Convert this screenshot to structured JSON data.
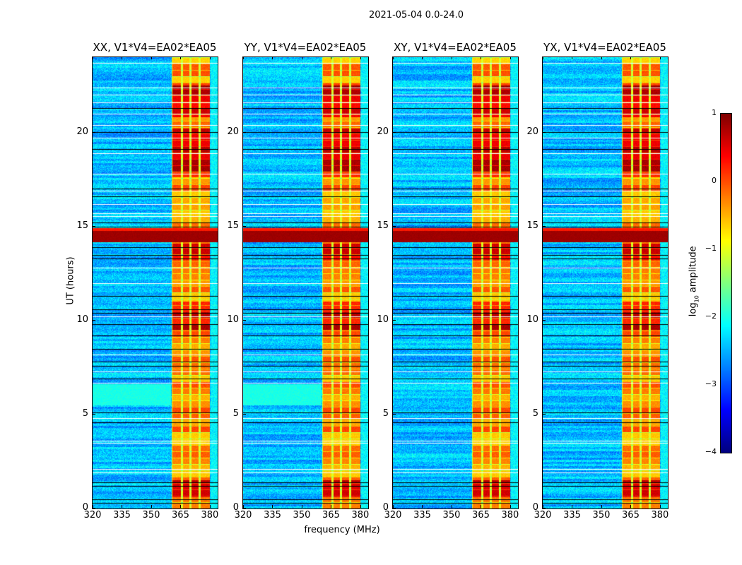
{
  "figure": {
    "suptitle": "2021-05-04 0.0-24.0",
    "xlabel": "frequency (MHz)",
    "ylabel": "UT (hours)"
  },
  "chart_data": {
    "type": "heatmap",
    "title": "2021-05-04 0.0-24.0",
    "xlabel": "frequency (MHz)",
    "ylabel": "UT (hours)",
    "xlim": [
      320,
      384
    ],
    "ylim": [
      0,
      24
    ],
    "xticks": [
      "320",
      "335",
      "350",
      "365",
      "380"
    ],
    "xtick_values": [
      320,
      335,
      350,
      365,
      380
    ],
    "yticks": [
      "0",
      "5",
      "10",
      "15",
      "20"
    ],
    "ytick_values": [
      0,
      5,
      10,
      15,
      20
    ],
    "panels": [
      {
        "title": "XX, V1*V4=EA02*EA05",
        "pol": "XX",
        "cyan_patch": true
      },
      {
        "title": "YY, V1*V4=EA02*EA05",
        "pol": "YY",
        "cyan_patch": true
      },
      {
        "title": "XY, V1*V4=EA02*EA05",
        "pol": "XY",
        "cyan_patch": false
      },
      {
        "title": "YX, V1*V4=EA02*EA05",
        "pol": "YX",
        "cyan_patch": false
      }
    ],
    "colorbar": {
      "label": "log10 amplitude",
      "label_main": "log",
      "label_sub": "10",
      "label_rest": " amplitude",
      "range": [
        -4,
        1
      ],
      "ticks": [
        "1",
        "0",
        "−1",
        "−2",
        "−3",
        "−4"
      ],
      "tick_values": [
        1,
        0,
        -1,
        -2,
        -3,
        -4
      ],
      "colormap": "jet"
    },
    "features": {
      "background_level": -2.8,
      "rfi_band_mhz": [
        360.5,
        380
      ],
      "rfi_band_level": -0.4,
      "rfi_subchannel_gaps_mhz": [
        365.8,
        370.1,
        374.8
      ],
      "rfi_strong_hours": [
        [
          17.6,
          20.2
        ],
        [
          9.5,
          11.0
        ],
        [
          13.2,
          14.1
        ],
        [
          0.6,
          1.5
        ],
        [
          20.8,
          22.5
        ]
      ],
      "broadband_rfi_hours": [
        14.15,
        14.9
      ],
      "broadband_rfi_level": 0.8,
      "cyan_patch_hours": [
        5.5,
        6.6
      ],
      "flagged_white_hours": [
        23.7,
        22.4,
        22.0,
        21.6,
        21.0,
        20.4,
        19.7,
        18.9,
        17.8,
        16.9,
        16.2,
        15.7,
        15.55,
        12.8,
        12.0,
        10.2,
        8.2,
        7.3,
        6.7,
        4.8,
        3.6,
        3.5,
        2.1,
        1.9
      ],
      "flagged_black_hours": [
        21.3,
        20.0,
        19.1,
        17.0,
        16.6,
        15.2,
        15.0,
        13.9,
        13.5,
        13.3,
        11.3,
        10.6,
        10.4,
        9.8,
        9.2,
        8.5,
        7.8,
        7.6,
        6.9,
        5.1,
        4.6,
        1.4,
        1.2,
        0.5,
        0.3
      ]
    }
  }
}
